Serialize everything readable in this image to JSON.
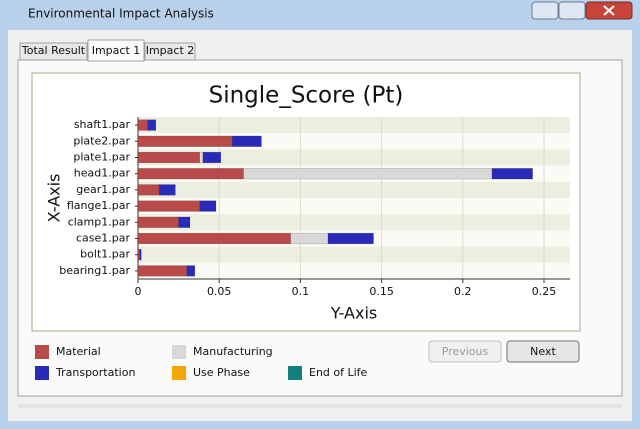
{
  "window": {
    "title": "Environmental Impact Analysis"
  },
  "tabs": [
    "Total Result",
    "Impact 1",
    "Impact 2"
  ],
  "buttons": [
    "Previous",
    "Next"
  ],
  "chart_data": {
    "type": "stacked_bar",
    "orientation": "horizontal",
    "title": "Single_Score (Pt)",
    "xlabel": "Y-Axis",
    "ylabel": "X-Axis",
    "categories": [
      "shaft1.par",
      "plate2.par",
      "plate1.par",
      "head1.par",
      "gear1.par",
      "flange1.par",
      "clamp1.par",
      "case1.par",
      "bolt1.par",
      "bearing1.par"
    ],
    "series": [
      {
        "name": "Material",
        "color": "#b84a4a",
        "values": [
          0.006,
          0.058,
          0.038,
          0.065,
          0.013,
          0.038,
          0.025,
          0.094,
          0.001,
          0.03
        ]
      },
      {
        "name": "Manufacturing",
        "color": "#d8d8d8",
        "values": [
          0,
          0,
          0.002,
          0.153,
          0,
          0,
          0,
          0.023,
          0,
          0
        ]
      },
      {
        "name": "Transportation",
        "color": "#2a2ab8",
        "values": [
          0.005,
          0.018,
          0.011,
          0.025,
          0.01,
          0.01,
          0.007,
          0.028,
          0.001,
          0.005
        ]
      },
      {
        "name": "Use Phase",
        "color": "#f5a500",
        "values": [
          0,
          0,
          0,
          0,
          0,
          0,
          0,
          0,
          0,
          0
        ]
      },
      {
        "name": "End of Life",
        "color": "#138080",
        "values": [
          0,
          0,
          0,
          0,
          0,
          0,
          0,
          0,
          0,
          0
        ]
      }
    ],
    "xlim": [
      0,
      0.266
    ],
    "xticks": [
      0,
      0.05,
      0.1,
      0.15,
      0.2,
      0.25
    ],
    "grid": true
  }
}
